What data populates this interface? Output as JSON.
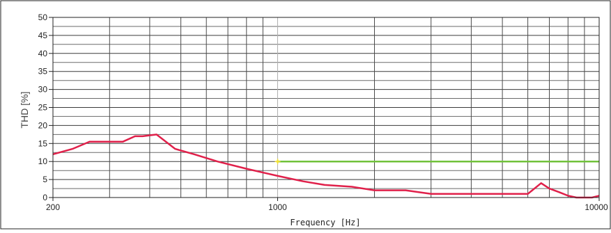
{
  "chart_data": {
    "type": "line",
    "title": "",
    "xlabel": "Frequency [Hz]",
    "ylabel": "THD [%]",
    "x_scale": "log",
    "xlim": [
      200,
      10000
    ],
    "ylim": [
      0,
      50
    ],
    "x_tick_labels": [
      {
        "value": 200,
        "label": "200"
      },
      {
        "value": 1000,
        "label": "1000"
      },
      {
        "value": 10000,
        "label": "10000"
      }
    ],
    "y_tick_labels": [
      "0",
      "5",
      "10",
      "15",
      "20",
      "25",
      "30",
      "35",
      "40",
      "45",
      "50"
    ],
    "grid": true,
    "series": [
      {
        "color": "#e0204a",
        "x": [
          200,
          230,
          260,
          300,
          330,
          360,
          380,
          420,
          480,
          550,
          650,
          800,
          1000,
          1200,
          1400,
          1700,
          2000,
          2500,
          3000,
          3500,
          4000,
          4500,
          5000,
          6000,
          6600,
          7000,
          7500,
          8000,
          8500,
          9500,
          10000
        ],
        "y": [
          12,
          13.5,
          15.5,
          15.5,
          15.5,
          17,
          17,
          17.5,
          13.5,
          12,
          10,
          8,
          6,
          4.5,
          3.5,
          3,
          2,
          2,
          1,
          1,
          1,
          1,
          1,
          1,
          4,
          2.5,
          1.5,
          0.5,
          0,
          0,
          0.5
        ]
      },
      {
        "color": "#70c23a",
        "x": [
          1000,
          10000
        ],
        "y": [
          10,
          10
        ]
      }
    ],
    "marker": {
      "x": 1000,
      "y": 10,
      "color": "#f2e23a"
    }
  }
}
